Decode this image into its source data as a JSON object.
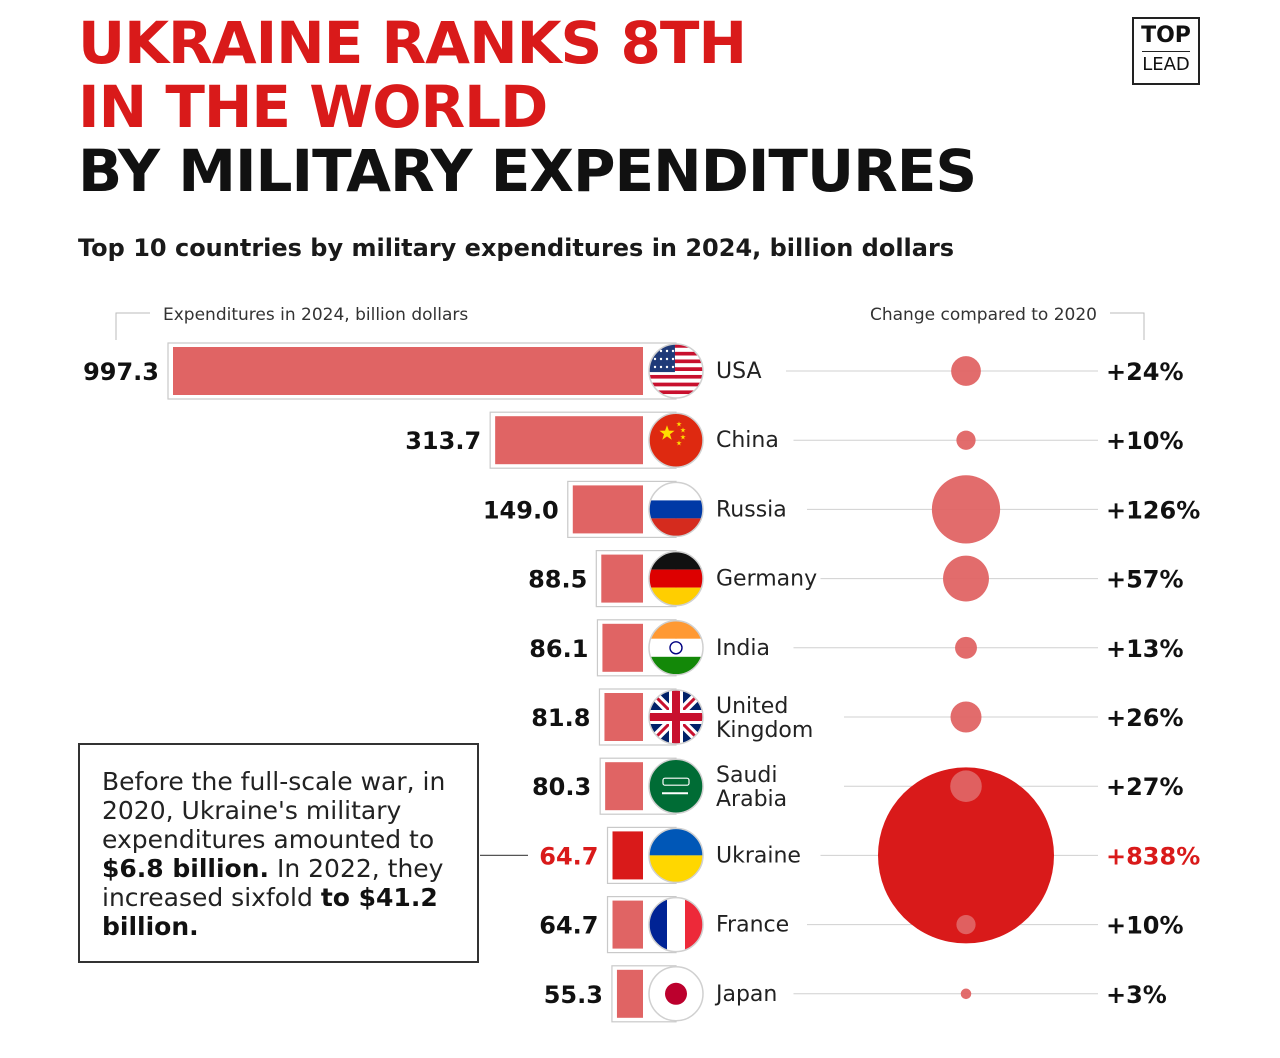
{
  "header": {
    "title_line1": "UKRAINE RANKS 8TH",
    "title_line2": "IN THE WORLD",
    "title_line3": "BY MILITARY EXPENDITURES",
    "subtitle": "Top 10 countries by military expenditures in 2024, billion dollars",
    "logo_top": "TOP",
    "logo_bottom": "LEAD"
  },
  "callout": {
    "text1": "Before the full-scale war, in 2020, Ukraine's military expenditures amounted to ",
    "bold1": "$6.8 billion.",
    "text2": " In 2022, they increased sixfold ",
    "bold2": "to $41.2 billion."
  },
  "colors": {
    "accent": "#d91a1a",
    "bar": "#e06464",
    "text": "#111111"
  },
  "chart_data": {
    "type": "bar",
    "left_header": "Expenditures in 2024, billion dollars",
    "right_header": "Change compared to 2020",
    "categories": [
      "USA",
      "China",
      "Russia",
      "Germany",
      "India",
      "United Kingdom",
      "Saudi Arabia",
      "Ukraine",
      "France",
      "Japan"
    ],
    "values": [
      997.3,
      313.7,
      149.0,
      88.5,
      86.1,
      81.8,
      80.3,
      64.7,
      64.7,
      55.3
    ],
    "value_labels": [
      "997.3",
      "313.7",
      "149.0",
      "88.5",
      "86.1",
      "81.8",
      "80.3",
      "64.7",
      "64.7",
      "55.3"
    ],
    "change_pct": [
      24,
      10,
      126,
      57,
      13,
      26,
      27,
      838,
      10,
      3
    ],
    "change_labels": [
      "+24%",
      "+10%",
      "+126%",
      "+57%",
      "+13%",
      "+26%",
      "+27%",
      "+838%",
      "+10%",
      "+3%"
    ],
    "highlight": "Ukraine",
    "flag_icons": [
      "us-flag-icon",
      "china-flag-icon",
      "russia-flag-icon",
      "germany-flag-icon",
      "india-flag-icon",
      "uk-flag-icon",
      "saudi-flag-icon",
      "ukraine-flag-icon",
      "france-flag-icon",
      "japan-flag-icon"
    ]
  }
}
